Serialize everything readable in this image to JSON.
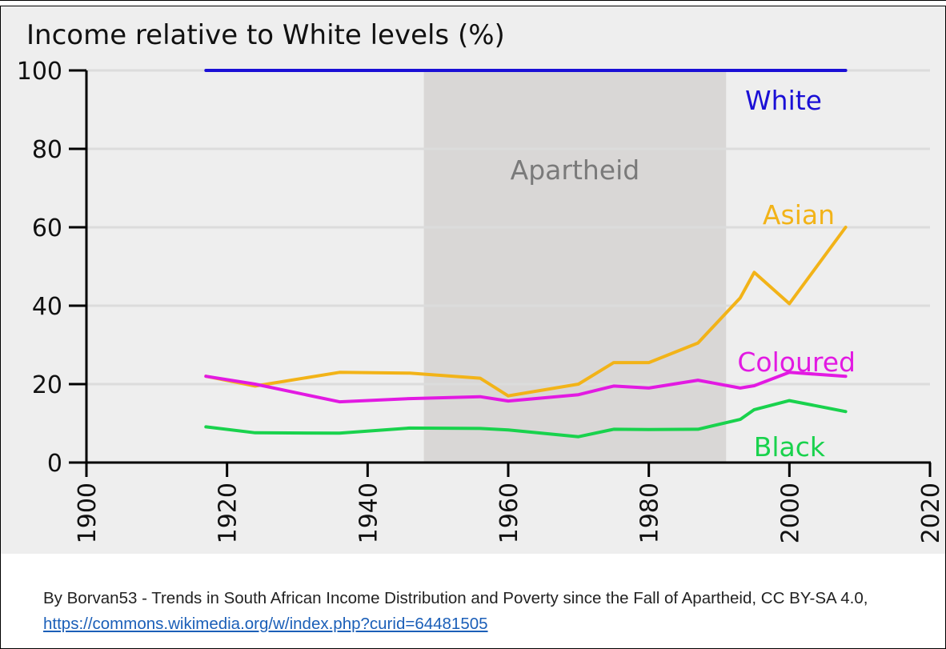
{
  "chart_data": {
    "type": "line",
    "title": "Income relative to White levels (%)",
    "xlabel": "",
    "ylabel": "",
    "xlim": [
      1900,
      2020
    ],
    "ylim": [
      0,
      100
    ],
    "x_ticks": [
      "1900",
      "1920",
      "1940",
      "1960",
      "1980",
      "2000",
      "2020"
    ],
    "y_ticks": [
      "0",
      "20",
      "40",
      "60",
      "80",
      "100"
    ],
    "grid": true,
    "shaded_period": {
      "label": "Apartheid",
      "start": 1948,
      "end": 1991
    },
    "series": [
      {
        "name": "White",
        "color": "#1a0fd6",
        "points": [
          [
            1917,
            100
          ],
          [
            2008,
            100
          ]
        ]
      },
      {
        "name": "Asian",
        "color": "#f2b318",
        "points": [
          [
            1917,
            22
          ],
          [
            1924,
            19.5
          ],
          [
            1936,
            23
          ],
          [
            1946,
            22.8
          ],
          [
            1956,
            21.5
          ],
          [
            1960,
            17
          ],
          [
            1970,
            20
          ],
          [
            1975,
            25.5
          ],
          [
            1980,
            25.5
          ],
          [
            1987,
            30.5
          ],
          [
            1993,
            42
          ],
          [
            1995,
            48.5
          ],
          [
            2000,
            40.5
          ],
          [
            2008,
            60
          ]
        ]
      },
      {
        "name": "Coloured",
        "color": "#e21ae2",
        "points": [
          [
            1917,
            22
          ],
          [
            1924,
            20
          ],
          [
            1936,
            15.5
          ],
          [
            1946,
            16.3
          ],
          [
            1956,
            16.8
          ],
          [
            1960,
            15.7
          ],
          [
            1970,
            17.3
          ],
          [
            1975,
            19.5
          ],
          [
            1980,
            19
          ],
          [
            1987,
            21
          ],
          [
            1993,
            19
          ],
          [
            1995,
            19.6
          ],
          [
            2000,
            23
          ],
          [
            2008,
            22
          ]
        ]
      },
      {
        "name": "Black",
        "color": "#19d24d",
        "points": [
          [
            1917,
            9.1
          ],
          [
            1924,
            7.6
          ],
          [
            1936,
            7.5
          ],
          [
            1946,
            8.8
          ],
          [
            1956,
            8.7
          ],
          [
            1960,
            8.3
          ],
          [
            1970,
            6.6
          ],
          [
            1975,
            8.5
          ],
          [
            1980,
            8.4
          ],
          [
            1987,
            8.5
          ],
          [
            1993,
            11
          ],
          [
            1995,
            13.5
          ],
          [
            2000,
            15.8
          ],
          [
            2008,
            13
          ]
        ]
      }
    ]
  },
  "caption": {
    "text": "By Borvan53 - Trends in South African Income Distribution and Poverty since the Fall of Apartheid, CC BY-SA 4.0,",
    "link": "https://commons.wikimedia.org/w/index.php?curid=64481505"
  }
}
